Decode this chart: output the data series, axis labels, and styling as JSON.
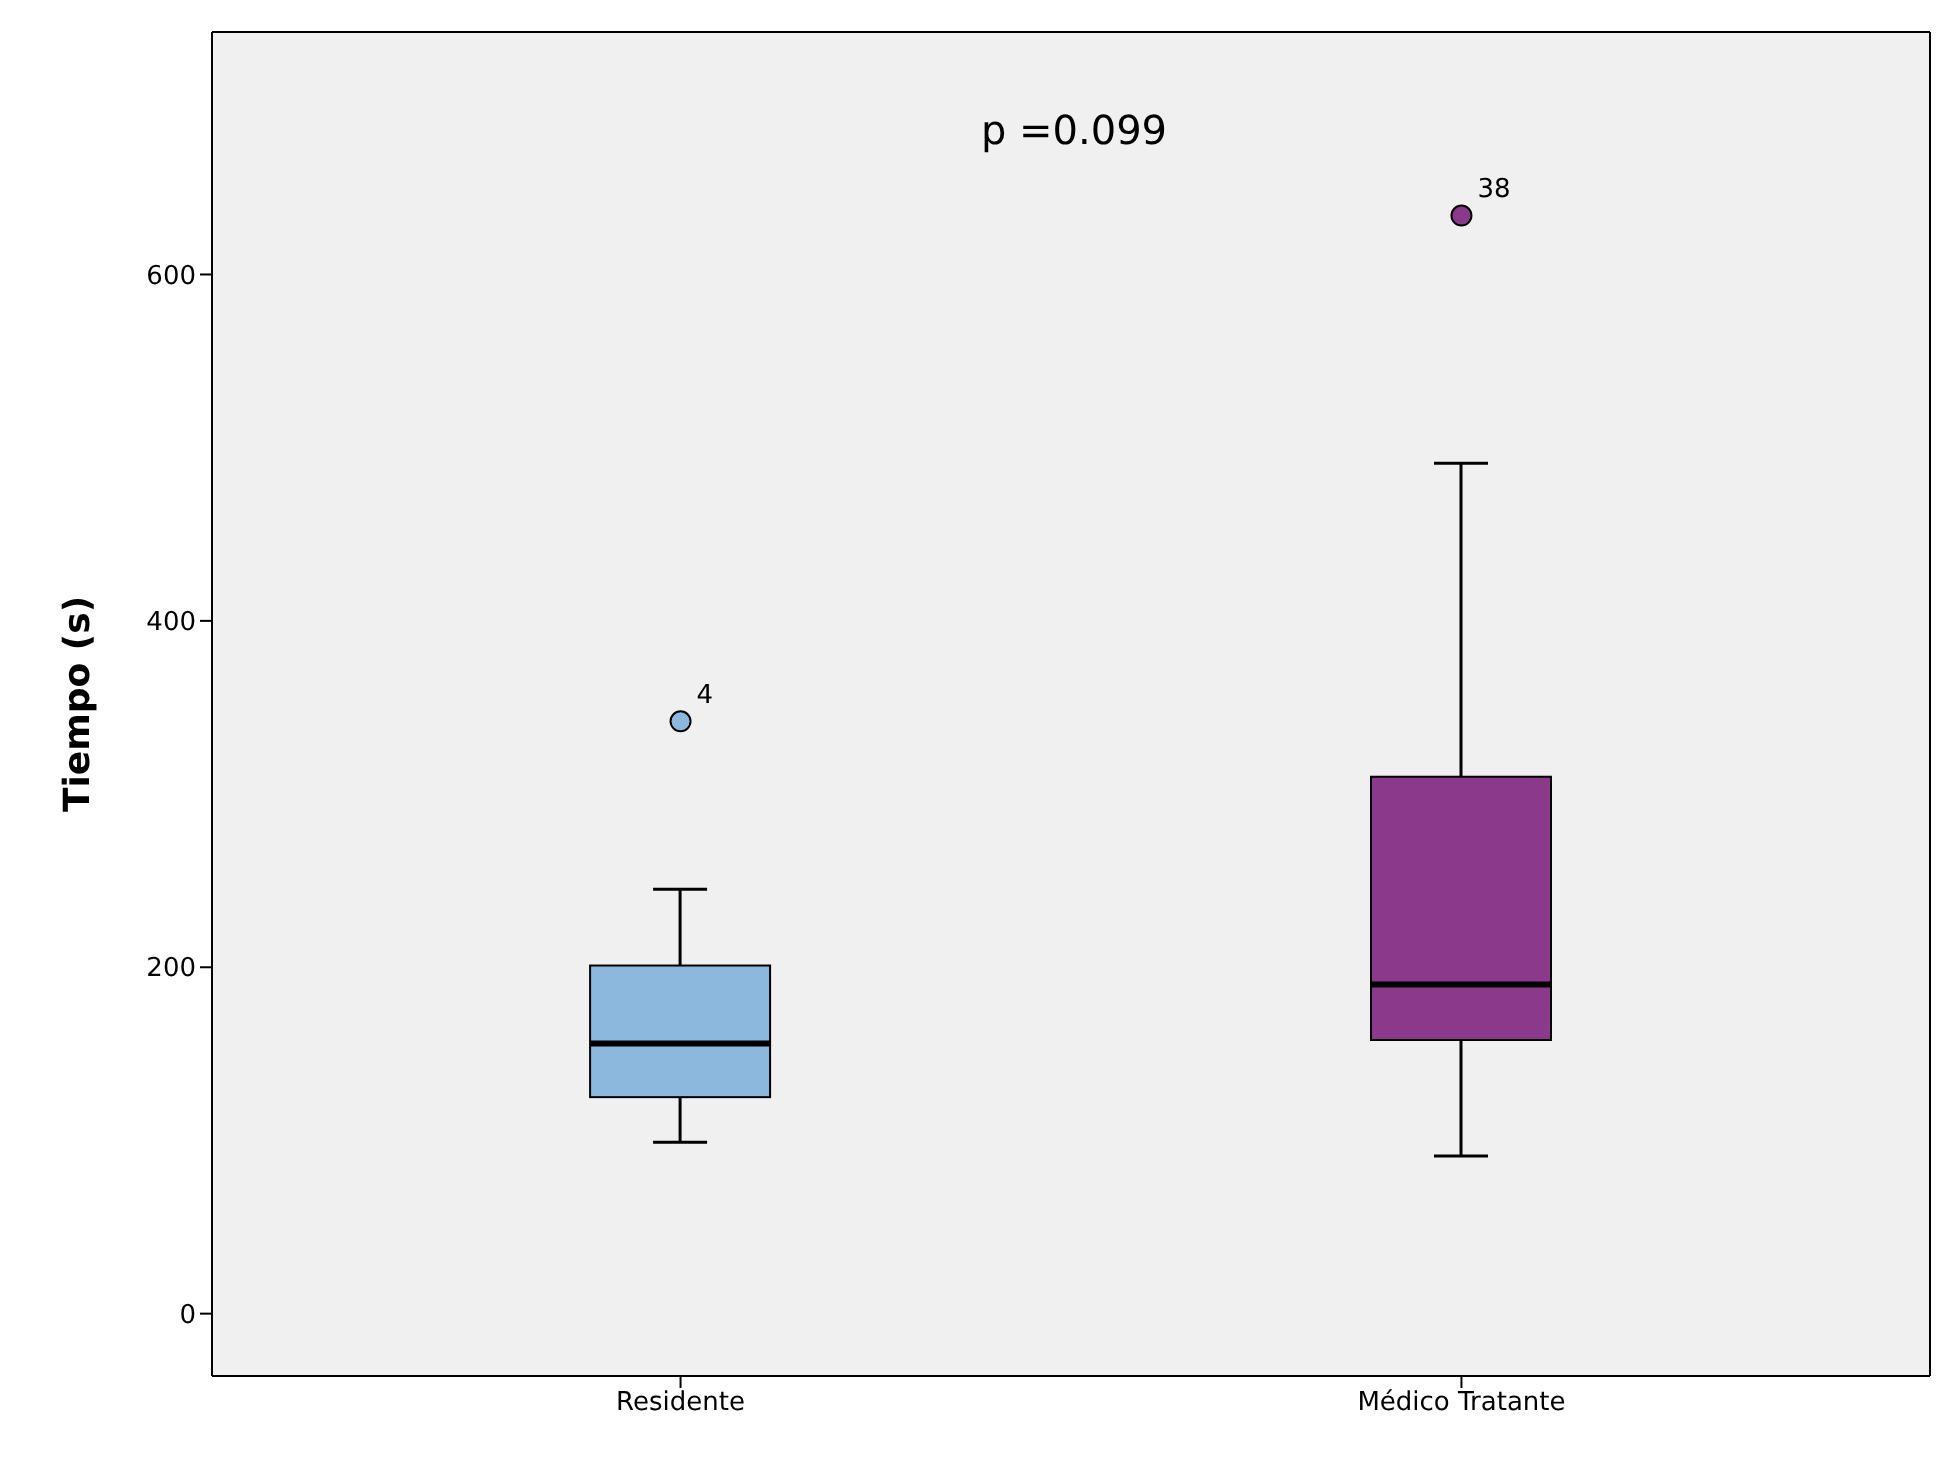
{
  "chart_data": {
    "type": "box",
    "ylabel": "Tiempo (s)",
    "categories": [
      "Residente",
      "Médico Tratante"
    ],
    "colors": [
      "#8db8de",
      "#8b3a8b"
    ],
    "boxes": [
      {
        "low": 99,
        "q1": 125,
        "median": 156,
        "q3": 201,
        "high": 245,
        "outliers": [
          342
        ]
      },
      {
        "low": 91,
        "q1": 158,
        "median": 190,
        "q3": 310,
        "high": 491,
        "outliers": [
          634
        ]
      }
    ],
    "ylim": [
      -36,
      740
    ],
    "yticks": [
      0,
      200,
      400,
      600
    ],
    "grid": false,
    "annotations": [
      "p =0.099",
      "4",
      "38"
    ]
  }
}
